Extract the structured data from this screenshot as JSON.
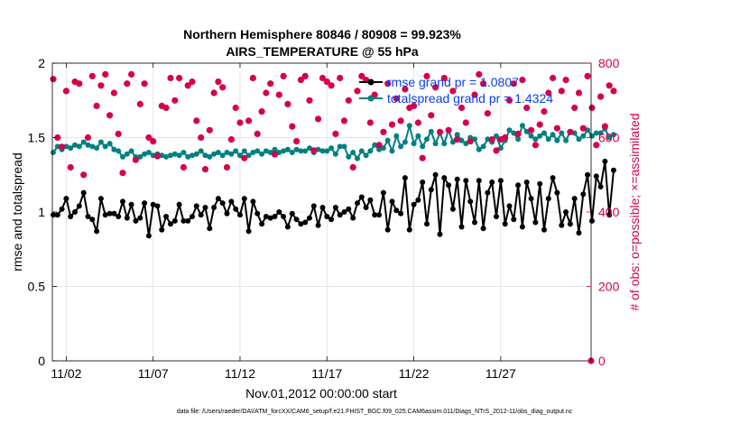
{
  "chart_data": {
    "type": "line",
    "title": "Northern Hemisphere 80846 / 80908 = 99.923%",
    "subtitle": "AIRS_TEMPERATURE @ 55 hPa",
    "xlabel": "Nov.01,2012 00:00:00 start",
    "ylabel": "rmse and totalspread",
    "y2label": "# of obs: o=possible; ×=assimilated",
    "x_ticks": [
      "11/02",
      "11/07",
      "11/12",
      "11/17",
      "11/22",
      "11/27"
    ],
    "x_tick_days": [
      2,
      7,
      12,
      17,
      22,
      27
    ],
    "xlim_days": [
      1.2,
      32.2
    ],
    "ylim": [
      0,
      2
    ],
    "y_ticks": [
      "0",
      "0.5",
      "1",
      "1.5",
      "2"
    ],
    "y2lim": [
      0,
      800
    ],
    "y2_ticks": [
      "0",
      "200",
      "400",
      "600",
      "800"
    ],
    "grid": true,
    "legend": "top-right",
    "x_start_day": 1.25,
    "x_step_days": 0.25,
    "colors": {
      "rmse": "#000000",
      "spread": "#008080",
      "obs": "#d6004f",
      "legend_text": "#0a3cf0"
    },
    "series": [
      {
        "name": "rmse grand pr = 1.0807",
        "values": [
          0.98,
          0.98,
          1.02,
          1.09,
          0.97,
          1.0,
          1.04,
          1.13,
          0.97,
          0.95,
          0.87,
          1.09,
          0.98,
          0.99,
          0.99,
          0.97,
          1.07,
          0.96,
          1.05,
          0.94,
          0.96,
          1.06,
          0.84,
          1.05,
          1.04,
          0.88,
          0.97,
          0.92,
          0.94,
          1.05,
          0.94,
          0.94,
          0.97,
          1.04,
          0.98,
          1.03,
          0.89,
          1.03,
          1.09,
          1.06,
          0.99,
          1.07,
          1.02,
          0.98,
          1.09,
          0.87,
          1.07,
          0.99,
          0.92,
          0.97,
          0.96,
          0.97,
          1.0,
          0.97,
          0.9,
          0.99,
          0.95,
          0.92,
          0.93,
          0.96,
          1.04,
          0.91,
          1.03,
          0.97,
          0.95,
          1.03,
          0.98,
          1.0,
          1.02,
          0.96,
          1.06,
          1.1,
          1.03,
          1.08,
          0.98,
          0.98,
          1.13,
          0.88,
          1.07,
          1.01,
          0.99,
          1.23,
          0.88,
          1.05,
          1.08,
          1.2,
          0.92,
          1.15,
          1.25,
          0.85,
          1.23,
          1.18,
          1.02,
          1.22,
          0.9,
          1.21,
          1.07,
          0.93,
          1.21,
          0.89,
          1.13,
          1.2,
          0.97,
          1.21,
          0.92,
          1.04,
          0.95,
          1.18,
          0.9,
          1.2,
          1.09,
          0.93,
          1.19,
          0.88,
          1.09,
          1.23,
          1.13,
          0.91,
          1.0,
          0.92,
          1.09,
          0.86,
          1.12,
          1.25,
          0.94,
          1.24,
          1.17,
          1.34,
          0.98,
          1.28
        ]
      },
      {
        "name": "totalspread grand pr = 1.4324",
        "values": [
          1.4,
          1.44,
          1.42,
          1.44,
          1.43,
          1.45,
          1.44,
          1.47,
          1.45,
          1.44,
          1.43,
          1.47,
          1.44,
          1.46,
          1.42,
          1.41,
          1.37,
          1.39,
          1.41,
          1.37,
          1.37,
          1.39,
          1.4,
          1.38,
          1.39,
          1.38,
          1.37,
          1.38,
          1.39,
          1.38,
          1.4,
          1.37,
          1.38,
          1.39,
          1.41,
          1.38,
          1.37,
          1.39,
          1.4,
          1.38,
          1.4,
          1.39,
          1.41,
          1.38,
          1.41,
          1.38,
          1.4,
          1.41,
          1.39,
          1.41,
          1.4,
          1.42,
          1.4,
          1.41,
          1.42,
          1.4,
          1.42,
          1.41,
          1.41,
          1.43,
          1.4,
          1.42,
          1.41,
          1.41,
          1.43,
          1.39,
          1.44,
          1.44,
          1.37,
          1.4,
          1.36,
          1.41,
          1.38,
          1.41,
          1.45,
          1.42,
          1.43,
          1.48,
          1.41,
          1.51,
          1.44,
          1.47,
          1.58,
          1.46,
          1.51,
          1.44,
          1.49,
          1.54,
          1.46,
          1.53,
          1.46,
          1.55,
          1.47,
          1.52,
          1.48,
          1.46,
          1.5,
          1.49,
          1.42,
          1.44,
          1.49,
          1.47,
          1.51,
          1.43,
          1.48,
          1.55,
          1.53,
          1.49,
          1.58,
          1.54,
          1.51,
          1.49,
          1.51,
          1.53,
          1.49,
          1.52,
          1.48,
          1.53,
          1.48,
          1.54,
          1.53,
          1.49,
          1.51,
          1.55,
          1.51,
          1.53,
          1.53,
          1.56,
          1.5,
          1.52
        ]
      },
      {
        "name": "obs possible",
        "values": [
          757,
          600,
          575,
          725,
          520,
          750,
          745,
          500,
          600,
          765,
          685,
          740,
          770,
          660,
          720,
          610,
          505,
          745,
          770,
          540,
          690,
          745,
          600,
          590,
          550,
          685,
          680,
          760,
          700,
          760,
          520,
          740,
          750,
          645,
          600,
          515,
          620,
          720,
          750,
          735,
          520,
          595,
          680,
          640,
          545,
          645,
          760,
          610,
          670,
          720,
          745,
          555,
          715,
          765,
          690,
          630,
          590,
          755,
          765,
          700,
          565,
          650,
          760,
          750,
          740,
          610,
          760,
          645,
          700,
          520,
          725,
          765,
          755,
          640,
          715,
          580,
          615,
          745,
          635,
          705,
          645,
          730,
          680,
          685,
          640,
          545,
          765,
          660,
          735,
          615,
          760,
          620,
          725,
          595,
          680,
          640,
          590,
          715,
          770,
          745,
          665,
          595,
          565,
          595,
          600,
          700,
          745,
          610,
          755,
          680,
          620,
          580,
          635,
          670,
          720,
          760,
          625,
          725,
          755,
          615,
          680,
          720,
          625,
          765,
          680,
          580,
          710,
          630,
          740,
          725
        ]
      }
    ]
  },
  "footnote": "data file: /Users/raeder/DAI/ATM_forcXX/CAM6_setup/f.e21.FHIST_BGC.f09_025.CAM6assim.011/Diags_NTrS_2012-11/obs_diag_output.nc"
}
